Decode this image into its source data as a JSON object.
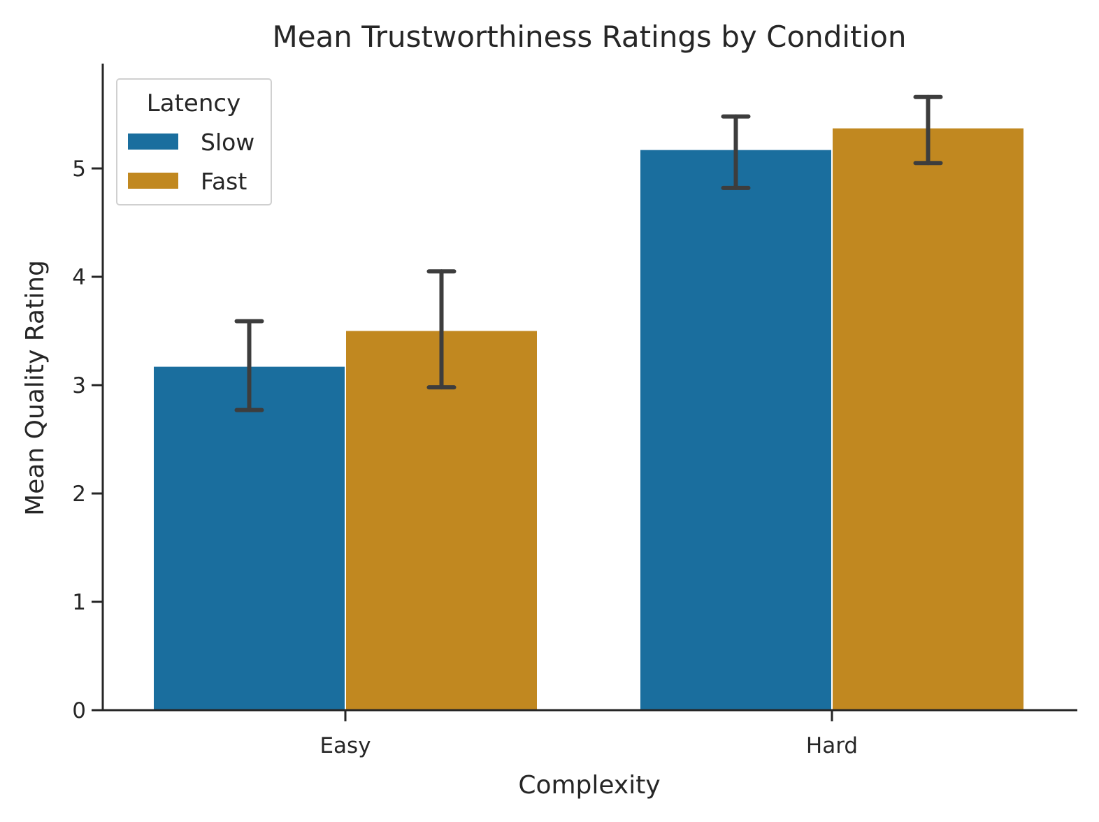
{
  "chart_data": {
    "type": "bar",
    "title": "Mean Trustworthiness Ratings by Condition",
    "xlabel": "Complexity",
    "ylabel": "Mean Quality Rating",
    "categories": [
      "Easy",
      "Hard"
    ],
    "ylim": [
      0,
      5.95
    ],
    "yticks": [
      0,
      1,
      2,
      3,
      4,
      5
    ],
    "grid": false,
    "legend": {
      "title": "Latency",
      "placement": "top-left"
    },
    "series": [
      {
        "name": "Slow",
        "color": "#1a6e9e",
        "values": [
          3.17,
          5.17
        ],
        "error_low": [
          2.77,
          4.82
        ],
        "error_high": [
          3.59,
          5.48
        ]
      },
      {
        "name": "Fast",
        "color": "#c18820",
        "values": [
          3.5,
          5.37
        ],
        "error_low": [
          2.98,
          5.05
        ],
        "error_high": [
          4.05,
          5.66
        ]
      }
    ],
    "error_bar_color": "#3d3d3d"
  }
}
